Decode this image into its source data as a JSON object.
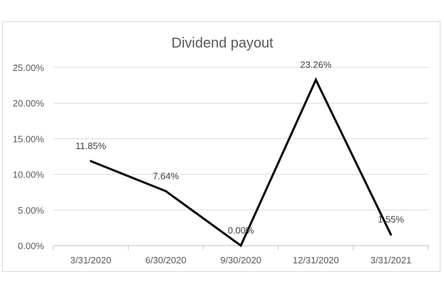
{
  "chart_data": {
    "type": "line",
    "title": "Dividend payout",
    "categories": [
      "3/31/2020",
      "6/30/2020",
      "9/30/2020",
      "12/31/2020",
      "3/31/2021"
    ],
    "series": [
      {
        "values": [
          11.85,
          7.64,
          0.0,
          23.26,
          1.55
        ],
        "labels": [
          "11.85%",
          "7.64%",
          "0.00%",
          "23.26%",
          "1.55%"
        ],
        "color": "#000000"
      }
    ],
    "yticks": [
      "0.00%",
      "5.00%",
      "10.00%",
      "15.00%",
      "20.00%",
      "25.00%"
    ],
    "ytick_values": [
      0,
      5,
      10,
      15,
      20,
      25
    ],
    "ylim": [
      0,
      25
    ],
    "grid": true,
    "legend": "none"
  }
}
